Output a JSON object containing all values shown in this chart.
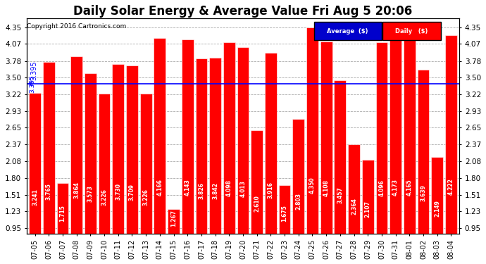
{
  "title": "Daily Solar Energy & Average Value Fri Aug 5 20:06",
  "copyright": "Copyright 2016 Cartronics.com",
  "average_value": 3.395,
  "average_label": "3.395",
  "categories": [
    "07-05",
    "07-06",
    "07-07",
    "07-08",
    "07-09",
    "07-10",
    "07-11",
    "07-12",
    "07-13",
    "07-14",
    "07-15",
    "07-16",
    "07-17",
    "07-18",
    "07-19",
    "07-20",
    "07-21",
    "07-22",
    "07-23",
    "07-24",
    "07-25",
    "07-26",
    "07-27",
    "07-28",
    "07-29",
    "07-30",
    "07-31",
    "08-01",
    "08-02",
    "08-03",
    "08-04"
  ],
  "values": [
    3.241,
    3.765,
    1.715,
    3.864,
    3.573,
    3.226,
    3.73,
    3.709,
    3.226,
    4.166,
    1.267,
    4.143,
    3.826,
    3.842,
    4.098,
    4.013,
    2.61,
    3.916,
    1.675,
    2.803,
    4.35,
    4.108,
    3.457,
    2.364,
    2.107,
    4.096,
    4.173,
    4.165,
    3.639,
    2.149,
    4.222
  ],
  "bar_color": "#FF0000",
  "avg_line_color": "#0000FF",
  "yticks": [
    0.95,
    1.23,
    1.51,
    1.8,
    2.08,
    2.37,
    2.65,
    2.93,
    3.22,
    3.5,
    3.78,
    4.07,
    4.35
  ],
  "ylim": [
    0.85,
    4.5
  ],
  "bg_color": "#FFFFFF",
  "grid_color": "#AAAAAA",
  "legend_avg_bg": "#0000CC",
  "legend_daily_bg": "#FF0000",
  "title_fontsize": 12,
  "label_fontsize": 5.5,
  "tick_fontsize": 7.5,
  "copyright_fontsize": 6.5
}
